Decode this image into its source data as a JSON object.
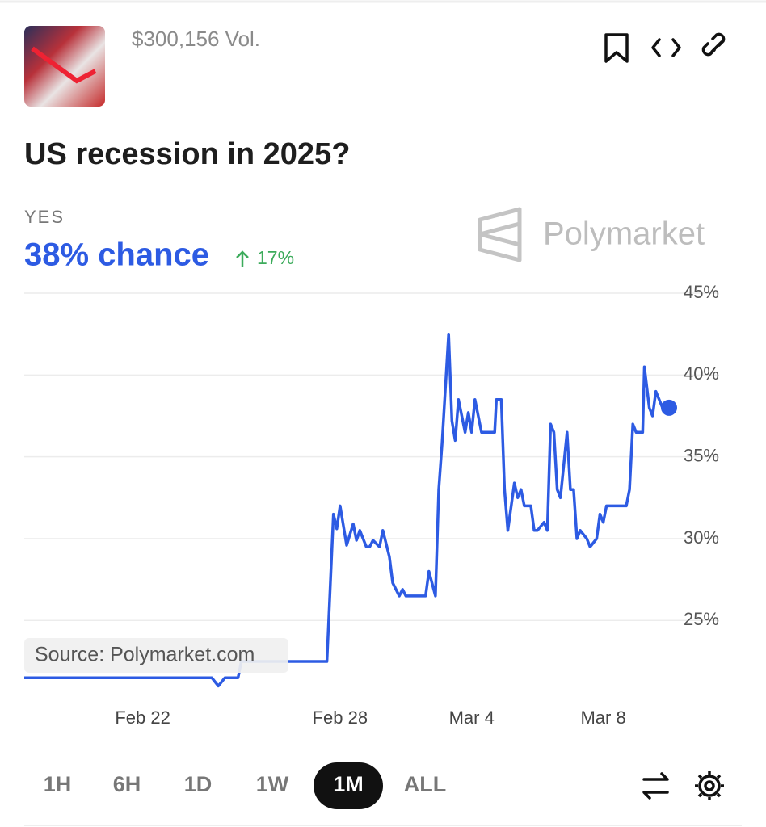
{
  "header": {
    "volume": "$300,156 Vol.",
    "title": "US recession in 2025?"
  },
  "outcome": {
    "label": "YES",
    "chance": "38% chance",
    "change": "17%"
  },
  "watermark": "Polymarket",
  "chart_data": {
    "type": "line",
    "color": "#2d5be3",
    "x": [
      18.4,
      24.1,
      24.3,
      24.5,
      24.9,
      25.0,
      27.6,
      27.8,
      27.9,
      28.0,
      28.2,
      28.4,
      28.5,
      28.6,
      28.8,
      28.9,
      29.0,
      29.2,
      29.3,
      29.5,
      29.6,
      29.8,
      29.9,
      30.0,
      30.6,
      30.7,
      30.9,
      31.0,
      31.1,
      31.3,
      31.4,
      31.5,
      31.6,
      31.8,
      31.9,
      32.0,
      32.1,
      32.3,
      32.7,
      32.75,
      32.9,
      33.0,
      33.1,
      33.3,
      33.4,
      33.5,
      33.6,
      33.8,
      33.9,
      34.0,
      34.2,
      34.3,
      34.4,
      34.5,
      34.6,
      34.7,
      34.9,
      35.0,
      35.1,
      35.2,
      35.3,
      35.5,
      35.6,
      35.8,
      35.9,
      36.0,
      36.1,
      36.7,
      36.8,
      36.9,
      37.0,
      37.2,
      37.25,
      37.4,
      37.5,
      37.6,
      37.8,
      38.0
    ],
    "values": [
      21.5,
      21.5,
      21.0,
      21.5,
      21.5,
      22.5,
      22.5,
      31.5,
      30.6,
      32.0,
      29.6,
      30.9,
      29.9,
      30.5,
      29.5,
      29.5,
      29.9,
      29.5,
      30.5,
      28.9,
      27.3,
      26.5,
      26.9,
      26.5,
      26.5,
      28.0,
      26.5,
      33.0,
      35.8,
      42.5,
      37.2,
      36.0,
      38.5,
      36.5,
      37.7,
      36.5,
      38.5,
      36.5,
      36.5,
      38.5,
      38.5,
      33.0,
      30.5,
      33.4,
      32.5,
      33.0,
      32.0,
      32.0,
      30.5,
      30.5,
      31.0,
      30.5,
      37.0,
      36.5,
      33.0,
      32.5,
      36.5,
      33.0,
      33.0,
      30.0,
      30.5,
      30.0,
      29.5,
      30.0,
      31.5,
      31.0,
      32.0,
      32.0,
      33.0,
      37.0,
      36.5,
      36.5,
      40.5,
      38.0,
      37.5,
      39.0,
      38.0,
      38.0
    ],
    "xlim": [
      18.4,
      38.0
    ],
    "xticks": [
      {
        "value": 22,
        "label": "Feb 22"
      },
      {
        "value": 28,
        "label": "Feb 28"
      },
      {
        "value": 32,
        "label": "Mar 4"
      },
      {
        "value": 36,
        "label": "Mar 8"
      }
    ],
    "ylim": [
      20.5,
      45
    ],
    "yticks": [
      {
        "value": 25,
        "label": "25%"
      },
      {
        "value": 30,
        "label": "30%"
      },
      {
        "value": 35,
        "label": "35%"
      },
      {
        "value": 40,
        "label": "40%"
      },
      {
        "value": 45,
        "label": "45%"
      }
    ],
    "grid": true,
    "source": "Source: Polymarket.com"
  },
  "ranges": [
    "1H",
    "6H",
    "1D",
    "1W",
    "1M",
    "ALL"
  ],
  "selected_range": "1M"
}
